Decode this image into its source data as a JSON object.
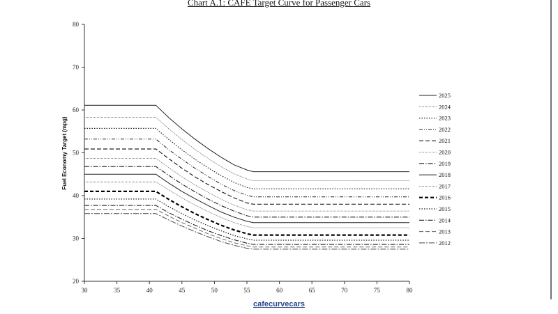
{
  "page": {
    "caption": "cafecurvecars"
  },
  "chart_data": {
    "type": "line",
    "title": "Chart A.1: CAFE Target Curve for Passenger Cars",
    "xlabel": "",
    "ylabel": "Fuel Economy Target (mpg)",
    "xlim": [
      30,
      80
    ],
    "ylim": [
      20,
      80
    ],
    "xticks": [
      30,
      35,
      40,
      45,
      50,
      55,
      60,
      65,
      70,
      75,
      80
    ],
    "yticks": [
      20,
      30,
      40,
      50,
      60,
      70,
      80
    ],
    "grid": false,
    "legend_position": "right",
    "x": [
      30,
      41,
      43,
      45,
      47,
      49,
      51,
      53,
      55,
      56,
      80
    ],
    "series": [
      {
        "name": "2025",
        "style": "solid-thin",
        "values": [
          61.1,
          61.1,
          58.2,
          55.6,
          53.2,
          51.0,
          49.0,
          47.2,
          46.0,
          45.6,
          45.6
        ]
      },
      {
        "name": "2024",
        "style": "dotted-fine",
        "values": [
          58.3,
          58.3,
          55.6,
          53.1,
          50.8,
          48.7,
          46.8,
          45.1,
          43.9,
          43.5,
          43.5
        ]
      },
      {
        "name": "2023",
        "style": "dotted",
        "values": [
          55.7,
          55.7,
          53.1,
          50.7,
          48.5,
          46.5,
          44.7,
          43.1,
          41.9,
          41.6,
          41.6
        ]
      },
      {
        "name": "2022",
        "style": "dash-dot-dot",
        "values": [
          53.2,
          53.2,
          50.7,
          48.5,
          46.4,
          44.5,
          42.7,
          41.2,
          40.1,
          39.7,
          39.7
        ]
      },
      {
        "name": "2021",
        "style": "dashed",
        "values": [
          50.9,
          50.9,
          48.6,
          46.4,
          44.4,
          42.6,
          41.0,
          39.5,
          38.3,
          38.0,
          38.0
        ]
      },
      {
        "name": "2020",
        "style": "dotted-fine",
        "values": [
          48.7,
          48.7,
          46.5,
          44.4,
          42.5,
          40.8,
          39.2,
          37.8,
          36.7,
          36.4,
          36.4
        ]
      },
      {
        "name": "2019",
        "style": "dash-dot",
        "values": [
          46.8,
          46.8,
          44.7,
          42.7,
          40.9,
          39.2,
          37.7,
          36.4,
          35.3,
          35.0,
          35.0
        ]
      },
      {
        "name": "2018",
        "style": "solid-thin",
        "values": [
          45.0,
          45.0,
          42.9,
          41.0,
          39.3,
          37.7,
          36.2,
          35.0,
          34.0,
          33.7,
          33.7
        ]
      },
      {
        "name": "2017",
        "style": "dotted-fine",
        "values": [
          43.2,
          43.2,
          41.3,
          39.5,
          37.8,
          36.3,
          34.9,
          33.7,
          32.8,
          32.5,
          32.5
        ]
      },
      {
        "name": "2016",
        "style": "dashed-bold",
        "values": [
          41.0,
          41.0,
          39.1,
          37.4,
          35.8,
          34.4,
          33.1,
          32.0,
          31.1,
          30.8,
          30.8
        ]
      },
      {
        "name": "2015",
        "style": "dotted",
        "values": [
          39.2,
          39.2,
          37.4,
          35.8,
          34.3,
          33.0,
          31.8,
          30.7,
          29.9,
          29.6,
          29.6
        ]
      },
      {
        "name": "2014",
        "style": "dash-dot",
        "values": [
          37.7,
          37.7,
          36.0,
          34.5,
          33.1,
          31.8,
          30.7,
          29.7,
          28.9,
          28.6,
          28.6
        ]
      },
      {
        "name": "2013",
        "style": "dashed-light",
        "values": [
          36.8,
          36.8,
          35.2,
          33.7,
          32.4,
          31.1,
          30.0,
          29.0,
          28.3,
          28.0,
          28.0
        ]
      },
      {
        "name": "2012",
        "style": "dash-dot-light",
        "values": [
          35.8,
          35.8,
          34.3,
          32.9,
          31.6,
          30.4,
          29.3,
          28.4,
          27.7,
          27.5,
          27.5
        ]
      }
    ]
  }
}
